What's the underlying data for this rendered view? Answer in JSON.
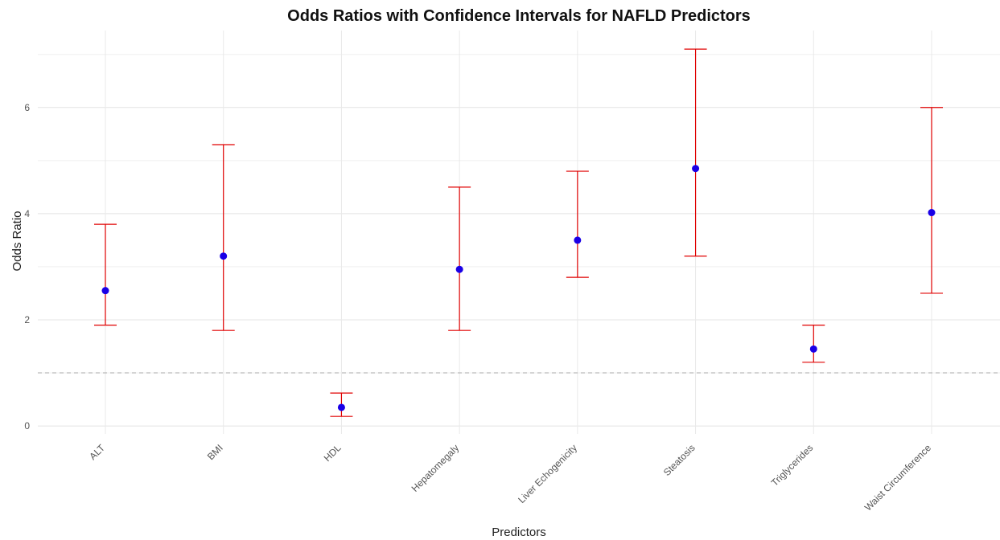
{
  "chart_data": {
    "type": "scatter",
    "title": "Odds Ratios with Confidence Intervals for NAFLD Predictors",
    "xlabel": "Predictors",
    "ylabel": "Odds Ratio",
    "categories": [
      "ALT",
      "BMI",
      "HDL",
      "Hepatomegaly",
      "Liver Echogenicity",
      "Steatosis",
      "Triglycerides",
      "Waist Circumference"
    ],
    "estimates": [
      2.55,
      3.2,
      0.35,
      2.95,
      3.5,
      4.85,
      1.45,
      4.02
    ],
    "ci_lower": [
      1.9,
      1.8,
      0.18,
      1.8,
      2.8,
      3.2,
      1.2,
      2.5
    ],
    "ci_upper": [
      3.8,
      5.3,
      0.62,
      4.5,
      4.8,
      7.1,
      1.9,
      6.0
    ],
    "reference_line": 1,
    "ylim": [
      -0.15,
      7.45
    ],
    "yticks": [
      "0",
      "2",
      "4",
      "6"
    ],
    "grid": true,
    "legend": "none",
    "point_color": "#1a00e6",
    "interval_color": "#e00000",
    "reference_line_color": "#aaaaaa"
  }
}
